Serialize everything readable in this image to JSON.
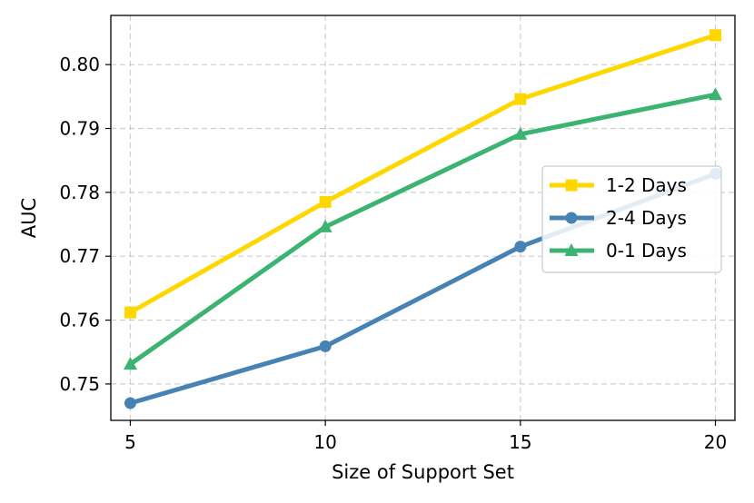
{
  "chart_data": {
    "type": "line",
    "title": "",
    "xlabel": "Size of Support Set",
    "ylabel": "AUC",
    "xlim": [
      4.5,
      20.5
    ],
    "ylim": [
      0.7443,
      0.8077
    ],
    "xticks": [
      5,
      10,
      15,
      20
    ],
    "xtick_labels": [
      "5",
      "10",
      "15",
      "20"
    ],
    "yticks": [
      0.75,
      0.76,
      0.77,
      0.78,
      0.79,
      0.8
    ],
    "ytick_labels": [
      "0.75",
      "0.76",
      "0.77",
      "0.78",
      "0.79",
      "0.80"
    ],
    "grid": true,
    "legend_position": "center-right",
    "x": [
      5,
      10,
      15,
      20
    ],
    "series": [
      {
        "name": "1-2 Days",
        "values": [
          0.7612,
          0.7785,
          0.7946,
          0.8046
        ],
        "color": "#FFD700",
        "marker": "square"
      },
      {
        "name": "2-4 Days",
        "values": [
          0.747,
          0.7559,
          0.7715,
          0.7829
        ],
        "color": "#4682B4",
        "marker": "circle"
      },
      {
        "name": "0-1 Days",
        "values": [
          0.7531,
          0.7746,
          0.7891,
          0.7953
        ],
        "color": "#3CB371",
        "marker": "triangle"
      }
    ]
  }
}
